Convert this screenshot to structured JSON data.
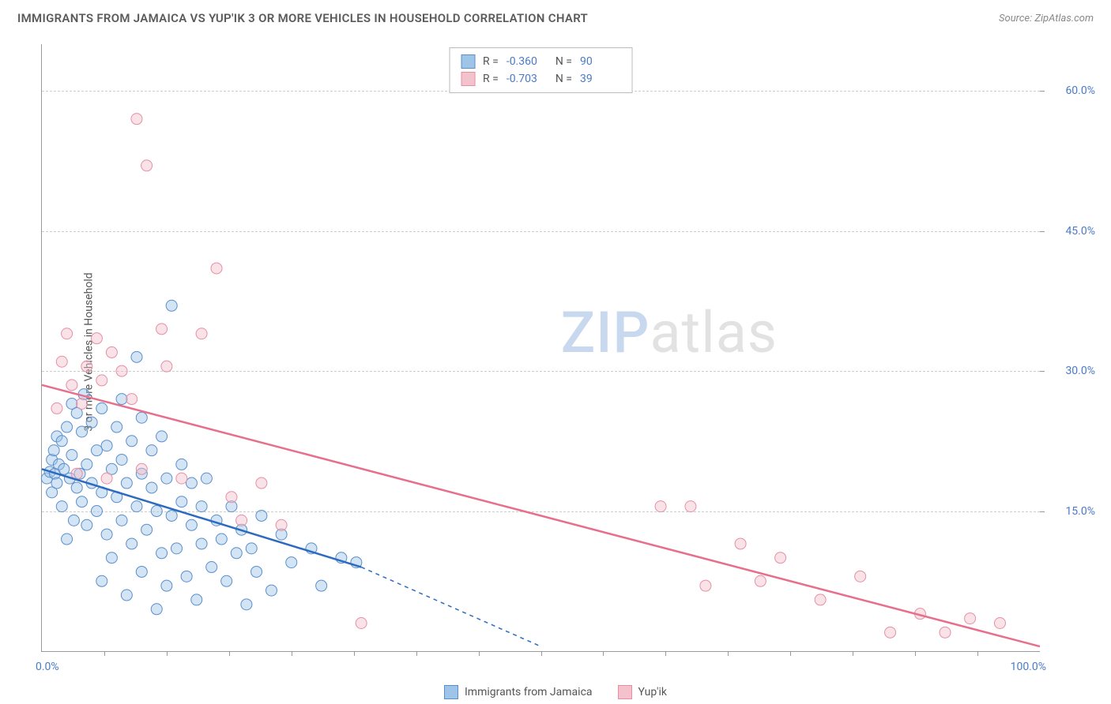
{
  "header": {
    "title": "IMMIGRANTS FROM JAMAICA VS YUP'IK 3 OR MORE VEHICLES IN HOUSEHOLD CORRELATION CHART",
    "source_prefix": "Source: ",
    "source_name": "ZipAtlas.com"
  },
  "watermark": {
    "part1": "ZIP",
    "part2": "atlas"
  },
  "chart": {
    "type": "scatter",
    "ylabel": "3 or more Vehicles in Household",
    "xlim": [
      0,
      100
    ],
    "ylim": [
      0,
      65
    ],
    "xticks_minor": [
      6.25,
      12.5,
      18.75,
      25,
      31.25,
      37.5,
      43.75,
      50,
      56.25,
      62.5,
      68.75,
      75,
      81.25,
      87.5,
      93.75
    ],
    "xticklabels": [
      {
        "pos": 0,
        "label": "0.0%",
        "align": "left"
      },
      {
        "pos": 100,
        "label": "100.0%",
        "align": "right"
      }
    ],
    "yticks": [
      15,
      30,
      45,
      60
    ],
    "yticklabels": [
      "15.0%",
      "30.0%",
      "45.0%",
      "60.0%"
    ],
    "grid_color": "#cccccc",
    "axis_color": "#999999",
    "background_color": "#ffffff",
    "tick_label_color": "#4a7bc8",
    "marker_radius": 7,
    "marker_opacity": 0.45,
    "line_width": 2.5
  },
  "series": [
    {
      "name": "Immigrants from Jamaica",
      "fill": "#9ec4e8",
      "stroke": "#5a8fcc",
      "line_color": "#2d6bbf",
      "stats": {
        "R_label": "R =",
        "R": "-0.360",
        "N_label": "N =",
        "N": "90"
      },
      "trend": {
        "x1": 0,
        "y1": 19.5,
        "x2": 32,
        "y2": 9.0,
        "dash_to_x": 50,
        "dash_to_y": 0.5
      },
      "points": [
        [
          0.5,
          18.5
        ],
        [
          0.8,
          19.2
        ],
        [
          1.0,
          20.5
        ],
        [
          1.0,
          17.0
        ],
        [
          1.2,
          21.5
        ],
        [
          1.3,
          19.0
        ],
        [
          1.5,
          23.0
        ],
        [
          1.5,
          18.0
        ],
        [
          1.7,
          20.0
        ],
        [
          2.0,
          22.5
        ],
        [
          2.0,
          15.5
        ],
        [
          2.2,
          19.5
        ],
        [
          2.5,
          24.0
        ],
        [
          2.5,
          12.0
        ],
        [
          2.8,
          18.5
        ],
        [
          3.0,
          26.5
        ],
        [
          3.0,
          21.0
        ],
        [
          3.2,
          14.0
        ],
        [
          3.5,
          17.5
        ],
        [
          3.5,
          25.5
        ],
        [
          3.8,
          19.0
        ],
        [
          4.0,
          23.5
        ],
        [
          4.0,
          16.0
        ],
        [
          4.2,
          27.5
        ],
        [
          4.5,
          13.5
        ],
        [
          4.5,
          20.0
        ],
        [
          5.0,
          18.0
        ],
        [
          5.0,
          24.5
        ],
        [
          5.5,
          15.0
        ],
        [
          5.5,
          21.5
        ],
        [
          6.0,
          7.5
        ],
        [
          6.0,
          17.0
        ],
        [
          6.0,
          26.0
        ],
        [
          6.5,
          12.5
        ],
        [
          6.5,
          22.0
        ],
        [
          7.0,
          19.5
        ],
        [
          7.0,
          10.0
        ],
        [
          7.5,
          16.5
        ],
        [
          7.5,
          24.0
        ],
        [
          8.0,
          14.0
        ],
        [
          8.0,
          20.5
        ],
        [
          8.0,
          27.0
        ],
        [
          8.5,
          6.0
        ],
        [
          8.5,
          18.0
        ],
        [
          9.0,
          11.5
        ],
        [
          9.0,
          22.5
        ],
        [
          9.5,
          15.5
        ],
        [
          9.5,
          31.5
        ],
        [
          10.0,
          8.5
        ],
        [
          10.0,
          19.0
        ],
        [
          10.0,
          25.0
        ],
        [
          10.5,
          13.0
        ],
        [
          11.0,
          17.5
        ],
        [
          11.0,
          21.5
        ],
        [
          11.5,
          4.5
        ],
        [
          11.5,
          15.0
        ],
        [
          12.0,
          10.5
        ],
        [
          12.0,
          23.0
        ],
        [
          12.5,
          7.0
        ],
        [
          12.5,
          18.5
        ],
        [
          13.0,
          14.5
        ],
        [
          13.0,
          37.0
        ],
        [
          13.5,
          11.0
        ],
        [
          14.0,
          16.0
        ],
        [
          14.0,
          20.0
        ],
        [
          14.5,
          8.0
        ],
        [
          15.0,
          13.5
        ],
        [
          15.0,
          18.0
        ],
        [
          15.5,
          5.5
        ],
        [
          16.0,
          11.5
        ],
        [
          16.0,
          15.5
        ],
        [
          16.5,
          18.5
        ],
        [
          17.0,
          9.0
        ],
        [
          17.5,
          14.0
        ],
        [
          18.0,
          12.0
        ],
        [
          18.5,
          7.5
        ],
        [
          19.0,
          15.5
        ],
        [
          19.5,
          10.5
        ],
        [
          20.0,
          13.0
        ],
        [
          20.5,
          5.0
        ],
        [
          21.0,
          11.0
        ],
        [
          21.5,
          8.5
        ],
        [
          22.0,
          14.5
        ],
        [
          23.0,
          6.5
        ],
        [
          24.0,
          12.5
        ],
        [
          25.0,
          9.5
        ],
        [
          27.0,
          11.0
        ],
        [
          28.0,
          7.0
        ],
        [
          30.0,
          10.0
        ],
        [
          31.5,
          9.5
        ]
      ]
    },
    {
      "name": "Yup'ik",
      "fill": "#f4c2cd",
      "stroke": "#e68fa3",
      "line_color": "#e76f8c",
      "stats": {
        "R_label": "R =",
        "R": "-0.703",
        "N_label": "N =",
        "N": "39"
      },
      "trend": {
        "x1": 0,
        "y1": 28.5,
        "x2": 100,
        "y2": 0.5
      },
      "points": [
        [
          1.5,
          26.0
        ],
        [
          2.0,
          31.0
        ],
        [
          2.5,
          34.0
        ],
        [
          3.0,
          28.5
        ],
        [
          3.5,
          19.0
        ],
        [
          4.0,
          26.5
        ],
        [
          4.5,
          30.5
        ],
        [
          5.5,
          33.5
        ],
        [
          6.0,
          29.0
        ],
        [
          6.5,
          18.5
        ],
        [
          7.0,
          32.0
        ],
        [
          8.0,
          30.0
        ],
        [
          9.0,
          27.0
        ],
        [
          9.5,
          57.0
        ],
        [
          10.0,
          19.5
        ],
        [
          10.5,
          52.0
        ],
        [
          12.0,
          34.5
        ],
        [
          12.5,
          30.5
        ],
        [
          14.0,
          18.5
        ],
        [
          16.0,
          34.0
        ],
        [
          17.5,
          41.0
        ],
        [
          19.0,
          16.5
        ],
        [
          20.0,
          14.0
        ],
        [
          22.0,
          18.0
        ],
        [
          24.0,
          13.5
        ],
        [
          32.0,
          3.0
        ],
        [
          62.0,
          15.5
        ],
        [
          65.0,
          15.5
        ],
        [
          66.5,
          7.0
        ],
        [
          70.0,
          11.5
        ],
        [
          72.0,
          7.5
        ],
        [
          74.0,
          10.0
        ],
        [
          78.0,
          5.5
        ],
        [
          82.0,
          8.0
        ],
        [
          85.0,
          2.0
        ],
        [
          88.0,
          4.0
        ],
        [
          90.5,
          2.0
        ],
        [
          93.0,
          3.5
        ],
        [
          96.0,
          3.0
        ]
      ]
    }
  ],
  "bottom_legend": {
    "items": [
      "Immigrants from Jamaica",
      "Yup'ik"
    ]
  }
}
